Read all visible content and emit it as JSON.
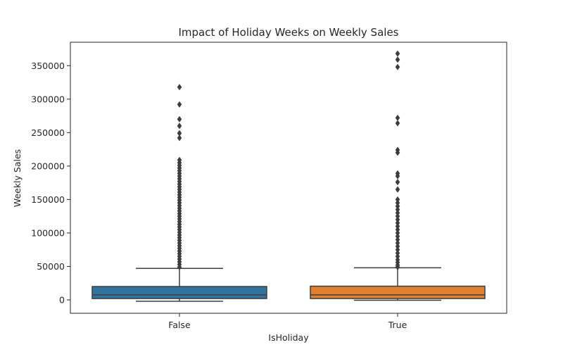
{
  "chart_data": {
    "type": "boxplot",
    "title": "Impact of Holiday Weeks on Weekly Sales",
    "xlabel": "IsHoliday",
    "ylabel": "Weekly Sales",
    "ylim": [
      -20000,
      385000
    ],
    "yticks": [
      0,
      50000,
      100000,
      150000,
      200000,
      250000,
      300000,
      350000
    ],
    "yticklabels": [
      "0",
      "50000",
      "100000",
      "150000",
      "200000",
      "250000",
      "300000",
      "350000"
    ],
    "grid": false,
    "legend": "none",
    "categories": [
      "False",
      "True"
    ],
    "series": [
      {
        "category": "False",
        "color": "#3274a1",
        "whisker_low": -2000,
        "q1": 2000,
        "median": 7500,
        "q3": 20000,
        "whisker_high": 47000,
        "outliers": [
          318000,
          292000,
          270000,
          260000,
          249000,
          242000,
          209000,
          205000,
          201000,
          197000,
          193000,
          189000,
          185000,
          181000,
          177000,
          173000,
          169000,
          165000,
          161000,
          157000,
          153000,
          149000,
          145000,
          141000,
          137000,
          133000,
          129000,
          125000,
          121000,
          117000,
          113000,
          109000,
          105000,
          101000,
          97000,
          93000,
          89000,
          85000,
          81000,
          77000,
          73000,
          69000,
          65000,
          61000,
          57000,
          53000,
          49000
        ]
      },
      {
        "category": "True",
        "color": "#e1812c",
        "whisker_low": -500,
        "q1": 2000,
        "median": 7500,
        "q3": 20500,
        "whisker_high": 48000,
        "outliers": [
          368000,
          359000,
          348000,
          272000,
          264000,
          224000,
          220000,
          189000,
          185000,
          176000,
          165000,
          150000,
          145000,
          140000,
          135000,
          130000,
          125000,
          120000,
          115000,
          110000,
          105000,
          100000,
          95000,
          90000,
          85000,
          80000,
          75000,
          70000,
          65000,
          60000,
          56000,
          52000,
          49000
        ]
      }
    ]
  }
}
